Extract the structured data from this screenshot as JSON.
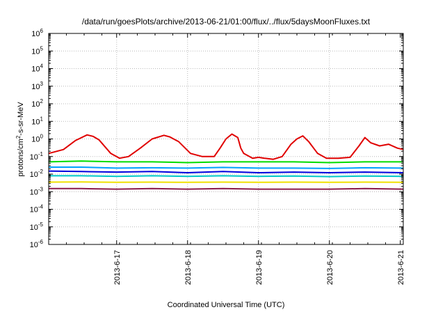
{
  "chart_data": {
    "type": "line",
    "title": "/data/run/goesPlots/archive/2013-06-21/01:00/flux/../flux/5daysMoonFluxes.txt",
    "xlabel": "Coordinated Universal Time (UTC)",
    "ylabel": "protons/cm2-s-sr-MeV",
    "ylabel_parts": {
      "base": "protons/cm",
      "sup": "2",
      "rest": "-s-sr-MeV"
    },
    "y_scale": "log",
    "ylim": [
      1e-06,
      1000000.0
    ],
    "y_ticks": [
      {
        "base": "10",
        "exp": "-6",
        "value": -6
      },
      {
        "base": "10",
        "exp": "-5",
        "value": -5
      },
      {
        "base": "10",
        "exp": "-4",
        "value": -4
      },
      {
        "base": "10",
        "exp": "-3",
        "value": -3
      },
      {
        "base": "10",
        "exp": "-2",
        "value": -2
      },
      {
        "base": "10",
        "exp": "-1",
        "value": -1
      },
      {
        "base": "10",
        "exp": "0",
        "value": 0
      },
      {
        "base": "10",
        "exp": "1",
        "value": 1
      },
      {
        "base": "10",
        "exp": "2",
        "value": 2
      },
      {
        "base": "10",
        "exp": "3",
        "value": 3
      },
      {
        "base": "10",
        "exp": "4",
        "value": 4
      },
      {
        "base": "10",
        "exp": "5",
        "value": 5
      },
      {
        "base": "10",
        "exp": "6",
        "value": 6
      }
    ],
    "xlim": [
      "2013-06-16 01:00",
      "2013-06-21 01:00"
    ],
    "x_ticks": [
      {
        "label": "2013-6-17",
        "t": "2013-06-17 00:00"
      },
      {
        "label": "2013-6-18",
        "t": "2013-06-18 00:00"
      },
      {
        "label": "2013-6-19",
        "t": "2013-06-19 00:00"
      },
      {
        "label": "2013-6-20",
        "t": "2013-06-20 00:00"
      },
      {
        "label": "2013-6-21",
        "t": "2013-06-21 00:00"
      }
    ],
    "grid": true,
    "series": [
      {
        "color": "#e00000",
        "x": [
          "2013-06-16 01:00",
          "2013-06-16 06:00",
          "2013-06-16 10:00",
          "2013-06-16 14:00",
          "2013-06-16 16:00",
          "2013-06-16 18:00",
          "2013-06-16 22:00",
          "2013-06-17 01:00",
          "2013-06-17 04:00",
          "2013-06-17 08:00",
          "2013-06-17 12:00",
          "2013-06-17 16:00",
          "2013-06-17 18:00",
          "2013-06-17 21:00",
          "2013-06-18 01:00",
          "2013-06-18 05:00",
          "2013-06-18 09:00",
          "2013-06-18 11:00",
          "2013-06-18 13:00",
          "2013-06-18 15:00",
          "2013-06-18 17:00",
          "2013-06-18 18:00",
          "2013-06-18 19:00",
          "2013-06-18 22:00",
          "2013-06-19 00:00",
          "2013-06-19 02:00",
          "2013-06-19 05:00",
          "2013-06-19 08:00",
          "2013-06-19 11:00",
          "2013-06-19 13:00",
          "2013-06-19 15:00",
          "2013-06-19 17:00",
          "2013-06-19 20:00",
          "2013-06-19 23:00",
          "2013-06-20 03:00",
          "2013-06-20 07:00",
          "2013-06-20 10:00",
          "2013-06-20 12:00",
          "2013-06-20 14:00",
          "2013-06-20 17:00",
          "2013-06-20 20:00",
          "2013-06-20 23:00",
          "2013-06-21 01:00"
        ],
        "values": [
          0.15,
          0.25,
          0.8,
          1.7,
          1.4,
          0.9,
          0.15,
          0.08,
          0.1,
          0.3,
          1.0,
          1.6,
          1.3,
          0.7,
          0.15,
          0.1,
          0.1,
          0.3,
          1.0,
          1.9,
          1.2,
          0.3,
          0.15,
          0.08,
          0.09,
          0.08,
          0.07,
          0.1,
          0.5,
          1.0,
          1.5,
          0.7,
          0.15,
          0.08,
          0.08,
          0.09,
          0.4,
          1.2,
          0.6,
          0.4,
          0.5,
          0.3,
          0.25
        ]
      },
      {
        "color": "#00dd00",
        "x": [
          "2013-06-16 01:00",
          "2013-06-16 12:00",
          "2013-06-17 00:00",
          "2013-06-17 12:00",
          "2013-06-18 00:00",
          "2013-06-18 12:00",
          "2013-06-19 00:00",
          "2013-06-19 12:00",
          "2013-06-20 00:00",
          "2013-06-20 12:00",
          "2013-06-21 01:00"
        ],
        "values": [
          0.05,
          0.055,
          0.05,
          0.05,
          0.045,
          0.05,
          0.05,
          0.05,
          0.045,
          0.05,
          0.05
        ]
      },
      {
        "color": "#00a0ff",
        "x": [
          "2013-06-16 01:00",
          "2013-06-16 12:00",
          "2013-06-17 00:00",
          "2013-06-17 12:00",
          "2013-06-18 00:00",
          "2013-06-18 12:00",
          "2013-06-19 00:00",
          "2013-06-19 12:00",
          "2013-06-20 00:00",
          "2013-06-20 12:00",
          "2013-06-21 01:00"
        ],
        "values": [
          0.025,
          0.025,
          0.022,
          0.023,
          0.022,
          0.024,
          0.022,
          0.022,
          0.021,
          0.023,
          0.022
        ]
      },
      {
        "color": "#0000dd",
        "x": [
          "2013-06-16 01:00",
          "2013-06-16 12:00",
          "2013-06-17 00:00",
          "2013-06-17 12:00",
          "2013-06-18 00:00",
          "2013-06-18 12:00",
          "2013-06-19 00:00",
          "2013-06-19 12:00",
          "2013-06-20 00:00",
          "2013-06-20 12:00",
          "2013-06-21 01:00"
        ],
        "values": [
          0.015,
          0.014,
          0.013,
          0.014,
          0.012,
          0.014,
          0.012,
          0.013,
          0.012,
          0.013,
          0.012
        ]
      },
      {
        "color": "#00c8c8",
        "x": [
          "2013-06-16 01:00",
          "2013-06-16 12:00",
          "2013-06-17 00:00",
          "2013-06-17 12:00",
          "2013-06-18 00:00",
          "2013-06-18 12:00",
          "2013-06-19 00:00",
          "2013-06-19 12:00",
          "2013-06-20 00:00",
          "2013-06-20 12:00",
          "2013-06-21 01:00"
        ],
        "values": [
          0.008,
          0.008,
          0.0075,
          0.008,
          0.0075,
          0.008,
          0.0075,
          0.0078,
          0.0072,
          0.0078,
          0.0075
        ]
      },
      {
        "color": "#f0e000",
        "x": [
          "2013-06-16 01:00",
          "2013-06-16 12:00",
          "2013-06-17 00:00",
          "2013-06-17 12:00",
          "2013-06-18 00:00",
          "2013-06-18 12:00",
          "2013-06-19 00:00",
          "2013-06-19 12:00",
          "2013-06-20 00:00",
          "2013-06-20 12:00",
          "2013-06-21 01:00"
        ],
        "values": [
          0.0035,
          0.0036,
          0.0034,
          0.0035,
          0.0034,
          0.0035,
          0.0034,
          0.0035,
          0.0034,
          0.0035,
          0.0034
        ]
      },
      {
        "color": "#8b1a4a",
        "x": [
          "2013-06-16 01:00",
          "2013-06-16 12:00",
          "2013-06-17 00:00",
          "2013-06-17 12:00",
          "2013-06-18 00:00",
          "2013-06-18 12:00",
          "2013-06-19 00:00",
          "2013-06-19 12:00",
          "2013-06-20 00:00",
          "2013-06-20 12:00",
          "2013-06-21 01:00"
        ],
        "values": [
          0.0015,
          0.0015,
          0.0014,
          0.0015,
          0.0014,
          0.0015,
          0.0014,
          0.0014,
          0.0014,
          0.0015,
          0.0014
        ]
      }
    ]
  }
}
